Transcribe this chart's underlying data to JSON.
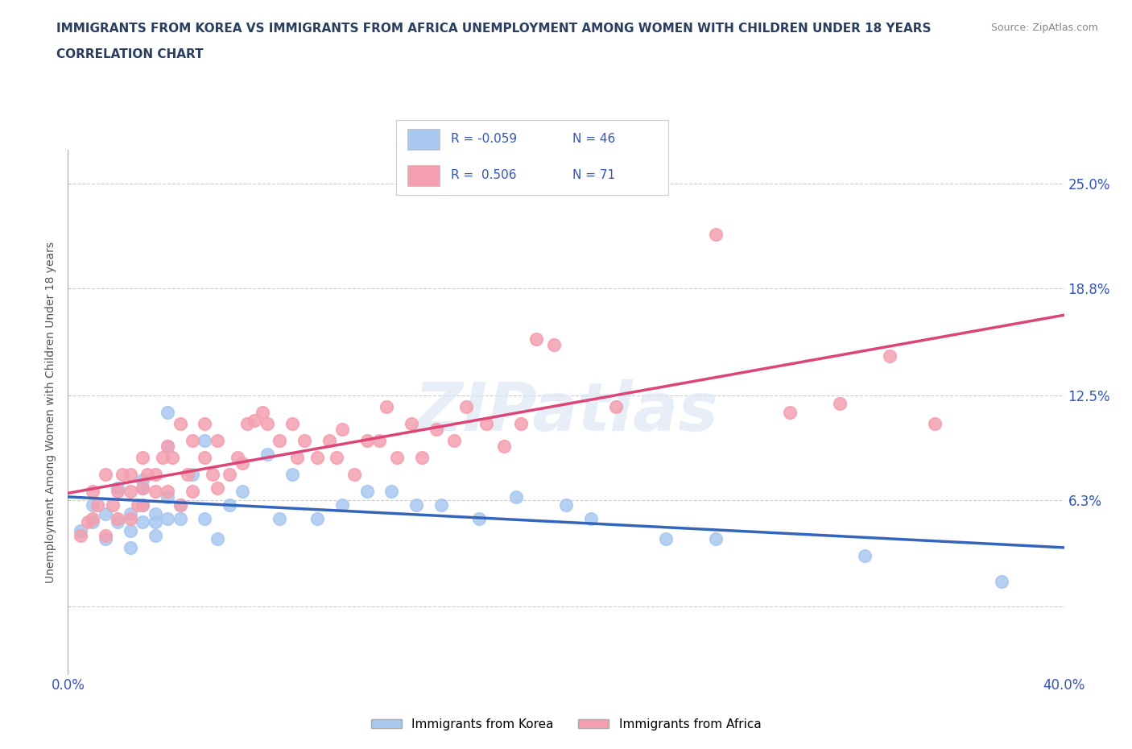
{
  "title_line1": "IMMIGRANTS FROM KOREA VS IMMIGRANTS FROM AFRICA UNEMPLOYMENT AMONG WOMEN WITH CHILDREN UNDER 18 YEARS",
  "title_line2": "CORRELATION CHART",
  "source": "Source: ZipAtlas.com",
  "ylabel": "Unemployment Among Women with Children Under 18 years",
  "xlim": [
    0.0,
    0.4
  ],
  "ylim": [
    -0.04,
    0.27
  ],
  "yticks": [
    0.0,
    0.063,
    0.125,
    0.188,
    0.25
  ],
  "ytick_labels": [
    "",
    "6.3%",
    "12.5%",
    "18.8%",
    "25.0%"
  ],
  "xticks": [
    0.0,
    0.1,
    0.2,
    0.3,
    0.4
  ],
  "xtick_labels": [
    "0.0%",
    "",
    "",
    "",
    "40.0%"
  ],
  "watermark": "ZIPatlas",
  "korea_R": "-0.059",
  "korea_N": "46",
  "africa_R": "0.506",
  "africa_N": "71",
  "korea_color": "#a8c8f0",
  "africa_color": "#f4a0b0",
  "korea_line_color": "#3366bb",
  "africa_line_color": "#dd4477",
  "background_color": "#ffffff",
  "grid_color": "#cccccc",
  "legend_text_color": "#3355bb",
  "title_color": "#2a3f5f",
  "korea_scatter": [
    [
      0.005,
      0.045
    ],
    [
      0.01,
      0.05
    ],
    [
      0.01,
      0.06
    ],
    [
      0.015,
      0.04
    ],
    [
      0.015,
      0.055
    ],
    [
      0.02,
      0.07
    ],
    [
      0.02,
      0.05
    ],
    [
      0.025,
      0.055
    ],
    [
      0.025,
      0.035
    ],
    [
      0.025,
      0.045
    ],
    [
      0.03,
      0.06
    ],
    [
      0.03,
      0.05
    ],
    [
      0.03,
      0.07
    ],
    [
      0.03,
      0.075
    ],
    [
      0.035,
      0.055
    ],
    [
      0.035,
      0.05
    ],
    [
      0.035,
      0.042
    ],
    [
      0.04,
      0.065
    ],
    [
      0.04,
      0.052
    ],
    [
      0.04,
      0.095
    ],
    [
      0.04,
      0.115
    ],
    [
      0.045,
      0.06
    ],
    [
      0.045,
      0.052
    ],
    [
      0.05,
      0.078
    ],
    [
      0.055,
      0.098
    ],
    [
      0.055,
      0.052
    ],
    [
      0.06,
      0.04
    ],
    [
      0.065,
      0.06
    ],
    [
      0.07,
      0.068
    ],
    [
      0.08,
      0.09
    ],
    [
      0.085,
      0.052
    ],
    [
      0.09,
      0.078
    ],
    [
      0.1,
      0.052
    ],
    [
      0.11,
      0.06
    ],
    [
      0.12,
      0.068
    ],
    [
      0.13,
      0.068
    ],
    [
      0.14,
      0.06
    ],
    [
      0.15,
      0.06
    ],
    [
      0.165,
      0.052
    ],
    [
      0.18,
      0.065
    ],
    [
      0.2,
      0.06
    ],
    [
      0.21,
      0.052
    ],
    [
      0.24,
      0.04
    ],
    [
      0.26,
      0.04
    ],
    [
      0.32,
      0.03
    ],
    [
      0.375,
      0.015
    ]
  ],
  "africa_scatter": [
    [
      0.005,
      0.042
    ],
    [
      0.008,
      0.05
    ],
    [
      0.01,
      0.052
    ],
    [
      0.01,
      0.068
    ],
    [
      0.012,
      0.06
    ],
    [
      0.015,
      0.078
    ],
    [
      0.015,
      0.042
    ],
    [
      0.018,
      0.06
    ],
    [
      0.02,
      0.068
    ],
    [
      0.02,
      0.052
    ],
    [
      0.022,
      0.078
    ],
    [
      0.025,
      0.052
    ],
    [
      0.025,
      0.068
    ],
    [
      0.025,
      0.078
    ],
    [
      0.028,
      0.06
    ],
    [
      0.03,
      0.06
    ],
    [
      0.03,
      0.088
    ],
    [
      0.03,
      0.07
    ],
    [
      0.032,
      0.078
    ],
    [
      0.035,
      0.068
    ],
    [
      0.035,
      0.078
    ],
    [
      0.038,
      0.088
    ],
    [
      0.04,
      0.095
    ],
    [
      0.04,
      0.068
    ],
    [
      0.042,
      0.088
    ],
    [
      0.045,
      0.108
    ],
    [
      0.045,
      0.06
    ],
    [
      0.048,
      0.078
    ],
    [
      0.05,
      0.098
    ],
    [
      0.05,
      0.068
    ],
    [
      0.055,
      0.088
    ],
    [
      0.055,
      0.108
    ],
    [
      0.058,
      0.078
    ],
    [
      0.06,
      0.098
    ],
    [
      0.06,
      0.07
    ],
    [
      0.065,
      0.078
    ],
    [
      0.068,
      0.088
    ],
    [
      0.07,
      0.085
    ],
    [
      0.072,
      0.108
    ],
    [
      0.075,
      0.11
    ],
    [
      0.078,
      0.115
    ],
    [
      0.08,
      0.108
    ],
    [
      0.085,
      0.098
    ],
    [
      0.09,
      0.108
    ],
    [
      0.092,
      0.088
    ],
    [
      0.095,
      0.098
    ],
    [
      0.1,
      0.088
    ],
    [
      0.105,
      0.098
    ],
    [
      0.108,
      0.088
    ],
    [
      0.11,
      0.105
    ],
    [
      0.115,
      0.078
    ],
    [
      0.12,
      0.098
    ],
    [
      0.125,
      0.098
    ],
    [
      0.128,
      0.118
    ],
    [
      0.132,
      0.088
    ],
    [
      0.138,
      0.108
    ],
    [
      0.142,
      0.088
    ],
    [
      0.148,
      0.105
    ],
    [
      0.155,
      0.098
    ],
    [
      0.16,
      0.118
    ],
    [
      0.168,
      0.108
    ],
    [
      0.175,
      0.095
    ],
    [
      0.182,
      0.108
    ],
    [
      0.188,
      0.158
    ],
    [
      0.195,
      0.155
    ],
    [
      0.22,
      0.118
    ],
    [
      0.26,
      0.22
    ],
    [
      0.29,
      0.115
    ],
    [
      0.31,
      0.12
    ],
    [
      0.33,
      0.148
    ],
    [
      0.348,
      0.108
    ]
  ]
}
